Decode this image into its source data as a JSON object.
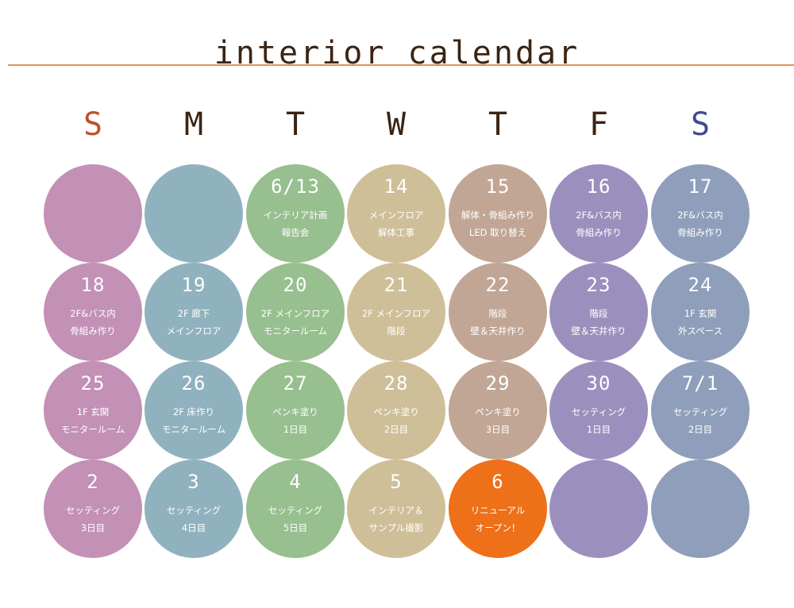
{
  "title": "interior calendar",
  "colors": {
    "rule": "#e0935a",
    "sunday_header": "#c0512a",
    "saturday_header": "#3f4a8f",
    "default_header": "#3b2414",
    "highlight": "#ee7019"
  },
  "weekdays": [
    {
      "label": "S",
      "color": "#c0512a"
    },
    {
      "label": "M",
      "color": "#3b2414"
    },
    {
      "label": "T",
      "color": "#3b2414"
    },
    {
      "label": "W",
      "color": "#3b2414"
    },
    {
      "label": "T",
      "color": "#3b2414"
    },
    {
      "label": "F",
      "color": "#3b2414"
    },
    {
      "label": "S",
      "color": "#3f4a8f"
    }
  ],
  "column_colors": [
    "#c390b6",
    "#90b2be",
    "#97bf8f",
    "#cfbf98",
    "#c1a695",
    "#9b90bd",
    "#8f9ebb"
  ],
  "weeks": [
    [
      {
        "date": "",
        "line1": "",
        "line2": ""
      },
      {
        "date": "",
        "line1": "",
        "line2": ""
      },
      {
        "date": "6/13",
        "line1": "インテリア計画",
        "line2": "報告会"
      },
      {
        "date": "14",
        "line1": "メインフロア",
        "line2": "解体工事"
      },
      {
        "date": "15",
        "line1": "解体・骨組み作り",
        "line2": "LED 取り替え"
      },
      {
        "date": "16",
        "line1": "2F&バス内",
        "line2": "骨組み作り"
      },
      {
        "date": "17",
        "line1": "2F&バス内",
        "line2": "骨組み作り"
      }
    ],
    [
      {
        "date": "18",
        "line1": "2F&バス内",
        "line2": "骨組み作り"
      },
      {
        "date": "19",
        "line1": "2F 廊下",
        "line2": "メインフロア"
      },
      {
        "date": "20",
        "line1": "2F メインフロア",
        "line2": "モニタールーム"
      },
      {
        "date": "21",
        "line1": "2F メインフロア",
        "line2": "階段"
      },
      {
        "date": "22",
        "line1": "階段",
        "line2": "壁＆天井作り"
      },
      {
        "date": "23",
        "line1": "階段",
        "line2": "壁＆天井作り"
      },
      {
        "date": "24",
        "line1": "1F 玄関",
        "line2": "外スペース"
      }
    ],
    [
      {
        "date": "25",
        "line1": "1F 玄関",
        "line2": "モニタールーム"
      },
      {
        "date": "26",
        "line1": "2F 床作り",
        "line2": "モニタールーム"
      },
      {
        "date": "27",
        "line1": "ペンキ塗り",
        "line2": "1日目"
      },
      {
        "date": "28",
        "line1": "ペンキ塗り",
        "line2": "2日目"
      },
      {
        "date": "29",
        "line1": "ペンキ塗り",
        "line2": "3日目"
      },
      {
        "date": "30",
        "line1": "セッティング",
        "line2": "1日目"
      },
      {
        "date": "7/1",
        "line1": "セッティング",
        "line2": "2日目"
      }
    ],
    [
      {
        "date": "2",
        "line1": "セッティング",
        "line2": "3日目"
      },
      {
        "date": "3",
        "line1": "セッティング",
        "line2": "4日目"
      },
      {
        "date": "4",
        "line1": "セッティング",
        "line2": "5日目"
      },
      {
        "date": "5",
        "line1": "インテリア＆",
        "line2": "サンプル撮影"
      },
      {
        "date": "6",
        "line1": "リニューアル",
        "line2": "オープン！",
        "highlight": true
      },
      {
        "date": "",
        "line1": "",
        "line2": ""
      },
      {
        "date": "",
        "line1": "",
        "line2": ""
      }
    ]
  ]
}
